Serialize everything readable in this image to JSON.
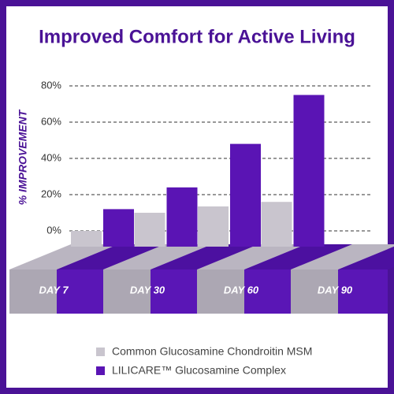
{
  "chart_data": {
    "type": "bar",
    "title": "Improved Comfort for Active Living",
    "ylabel": "% IMPROVEMENT",
    "categories": [
      "DAY 7",
      "DAY 30",
      "DAY 60",
      "DAY 90"
    ],
    "series": [
      {
        "name": "Common Glucosamine Chondroitin MSM",
        "color": "#c9c5ce",
        "values": [
          0,
          10,
          13.5,
          16
        ]
      },
      {
        "name": "LILICARE™ Glucosamine Complex",
        "color": "#5a14b4",
        "values": [
          12,
          24,
          48,
          75
        ]
      }
    ],
    "ylim": [
      0,
      80
    ],
    "yticks": [
      {
        "value": 0,
        "label": "0%"
      },
      {
        "value": 20,
        "label": "20%"
      },
      {
        "value": 40,
        "label": "40%"
      },
      {
        "value": 60,
        "label": "60%"
      },
      {
        "value": 80,
        "label": "80%"
      }
    ],
    "grid": true
  }
}
